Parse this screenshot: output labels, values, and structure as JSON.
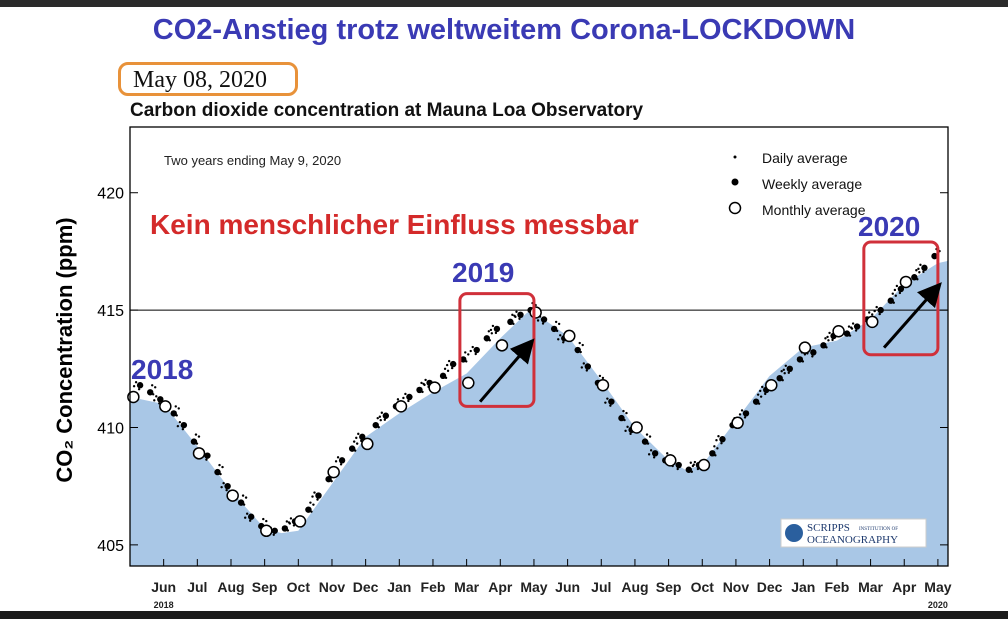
{
  "headline": "CO2-Anstieg trotz weltweitem Corona-LOCKDOWN",
  "date_box": "May 08, 2020",
  "chart_data": {
    "type": "scatter",
    "title": "Carbon dioxide concentration at Mauna Loa Observatory",
    "period_note": "Two years ending May 9, 2020",
    "ylabel": "CO₂ Concentration (ppm)",
    "ylim": [
      404.1,
      422.8
    ],
    "xlim": [
      0,
      24.3
    ],
    "yticks": [
      405,
      410,
      415,
      420
    ],
    "xticks": [
      {
        "label": "Jun",
        "x": 1.0
      },
      {
        "label": "Jul",
        "x": 2.0
      },
      {
        "label": "Aug",
        "x": 3.0
      },
      {
        "label": "Sep",
        "x": 4.0
      },
      {
        "label": "Oct",
        "x": 5.0
      },
      {
        "label": "Nov",
        "x": 6.0
      },
      {
        "label": "Dec",
        "x": 7.0
      },
      {
        "label": "Jan",
        "x": 8.0
      },
      {
        "label": "Feb",
        "x": 9.0
      },
      {
        "label": "Mar",
        "x": 10.0
      },
      {
        "label": "Apr",
        "x": 11.0
      },
      {
        "label": "May",
        "x": 12.0
      },
      {
        "label": "Jun",
        "x": 13.0
      },
      {
        "label": "Jul",
        "x": 14.0
      },
      {
        "label": "Aug",
        "x": 15.0
      },
      {
        "label": "Sep",
        "x": 16.0
      },
      {
        "label": "Oct",
        "x": 17.0
      },
      {
        "label": "Nov",
        "x": 18.0
      },
      {
        "label": "Dec",
        "x": 19.0
      },
      {
        "label": "Jan",
        "x": 20.0
      },
      {
        "label": "Feb",
        "x": 21.0
      },
      {
        "label": "Mar",
        "x": 22.0
      },
      {
        "label": "Apr",
        "x": 23.0
      },
      {
        "label": "May",
        "x": 24.0
      }
    ],
    "year_labels": [
      {
        "label": "2018",
        "x": 1.0
      },
      {
        "label": "2020",
        "x": 24.0
      }
    ],
    "reference_line": 415,
    "legend": {
      "placement": "top-right",
      "entries": [
        "Daily average",
        "Weekly average",
        "Monthly average"
      ]
    },
    "fill_curve": {
      "x": [
        0,
        1,
        2,
        3,
        4,
        4.5,
        5,
        6,
        7,
        8,
        9,
        10,
        11,
        11.8,
        12,
        13,
        14,
        15,
        16,
        16.5,
        17,
        18,
        19,
        20,
        21,
        22,
        23,
        24,
        24.3
      ],
      "y": [
        411.3,
        411.0,
        409.2,
        407.3,
        405.7,
        405.5,
        405.6,
        407.6,
        409.6,
        410.6,
        411.5,
        412.3,
        413.8,
        414.9,
        414.9,
        413.9,
        412.0,
        410.0,
        408.6,
        408.2,
        408.4,
        410.3,
        412.2,
        413.4,
        413.7,
        414.6,
        416.1,
        417.0,
        417.1
      ]
    },
    "monthly_average": {
      "x": [
        0.1,
        1.05,
        2.05,
        3.05,
        4.05,
        5.05,
        6.05,
        7.05,
        8.05,
        9.05,
        10.05,
        11.05,
        12.05,
        13.05,
        14.05,
        15.05,
        16.05,
        17.05,
        18.05,
        19.05,
        20.05,
        21.05,
        22.05,
        23.05
      ],
      "y": [
        411.3,
        410.9,
        408.9,
        407.1,
        405.6,
        406.0,
        408.1,
        409.3,
        410.9,
        411.7,
        411.9,
        413.5,
        414.9,
        413.9,
        411.8,
        410.0,
        408.6,
        408.4,
        410.2,
        411.8,
        413.4,
        414.1,
        414.5,
        416.2
      ]
    },
    "weekly_average": {
      "x": [
        0.3,
        0.6,
        0.9,
        1.3,
        1.6,
        1.9,
        2.3,
        2.6,
        2.9,
        3.3,
        3.6,
        3.9,
        4.3,
        4.6,
        4.9,
        5.3,
        5.6,
        5.9,
        6.3,
        6.6,
        6.9,
        7.3,
        7.6,
        7.9,
        8.3,
        8.6,
        8.9,
        9.3,
        9.6,
        9.9,
        10.3,
        10.6,
        10.9,
        11.3,
        11.6,
        11.9,
        12.3,
        12.6,
        12.9,
        13.3,
        13.6,
        13.9,
        14.3,
        14.6,
        14.9,
        15.3,
        15.6,
        15.9,
        16.3,
        16.6,
        16.9,
        17.3,
        17.6,
        17.9,
        18.3,
        18.6,
        18.9,
        19.3,
        19.6,
        19.9,
        20.3,
        20.6,
        20.9,
        21.3,
        21.6,
        21.9,
        22.3,
        22.6,
        22.9,
        23.3,
        23.6,
        23.9
      ],
      "y": [
        411.8,
        411.5,
        411.2,
        410.6,
        410.1,
        409.4,
        408.8,
        408.1,
        407.5,
        406.8,
        406.2,
        405.8,
        405.6,
        405.7,
        406.0,
        406.5,
        407.1,
        407.8,
        408.6,
        409.1,
        409.6,
        410.1,
        410.5,
        410.9,
        411.3,
        411.6,
        411.9,
        412.2,
        412.7,
        412.9,
        413.3,
        413.8,
        414.2,
        414.5,
        414.8,
        415.0,
        414.6,
        414.2,
        413.8,
        413.3,
        412.6,
        411.9,
        411.1,
        410.4,
        409.9,
        409.4,
        408.9,
        408.6,
        408.4,
        408.2,
        408.4,
        408.9,
        409.5,
        410.1,
        410.6,
        411.1,
        411.6,
        412.1,
        412.5,
        412.9,
        413.2,
        413.5,
        413.9,
        414.0,
        414.3,
        414.6,
        415.0,
        415.4,
        415.9,
        416.4,
        416.8,
        417.3
      ]
    },
    "annotations": {
      "main_claim": "Kein menschlicher Einfluss messbar",
      "year_2018": "2018",
      "year_2019": "2019",
      "year_2020": "2020",
      "highlight_boxes": [
        {
          "label": "2019",
          "x0": 9.8,
          "x1": 12.0,
          "y0": 410.9,
          "y1": 415.7
        },
        {
          "label": "2020",
          "x0": 21.8,
          "x1": 24.0,
          "y0": 413.1,
          "y1": 417.9
        }
      ],
      "arrows": [
        {
          "x0": 10.4,
          "y0": 411.1,
          "x1": 11.9,
          "y1": 413.6
        },
        {
          "x0": 22.4,
          "y0": 413.4,
          "x1": 24.0,
          "y1": 416.0
        }
      ]
    },
    "colors": {
      "fill": "#a9c7e6",
      "headline": "#3a3ab4",
      "claim": "#d42a2a",
      "box": "#d0303a",
      "datebox": "#e8923a",
      "year_label": "#3a3ab4"
    }
  },
  "logo": {
    "line1": "SCRIPPS",
    "line2": "OCEANOGRAPHY",
    "sub": "INSTITUTION OF"
  }
}
